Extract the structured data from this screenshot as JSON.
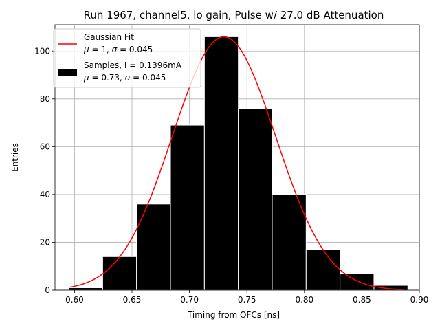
{
  "chart_data": {
    "type": "bar",
    "title": "Run 1967, channel5, lo gain, Pulse w/ 27.0 dB Attenuation",
    "xlabel": "Timing from OFCs [ns]",
    "ylabel": "Entries",
    "xlim": [
      0.583,
      0.9
    ],
    "ylim": [
      0,
      111
    ],
    "grid": true,
    "xticks": [
      0.6,
      0.65,
      0.7,
      0.75,
      0.8,
      0.85,
      0.9
    ],
    "xtick_labels": [
      "0.60",
      "0.65",
      "0.70",
      "0.75",
      "0.80",
      "0.85",
      "0.90"
    ],
    "yticks": [
      0,
      20,
      40,
      60,
      80,
      100
    ],
    "ytick_labels": [
      "0",
      "20",
      "40",
      "60",
      "80",
      "100"
    ],
    "bins": [
      {
        "left": 0.595,
        "right": 0.6245,
        "value": 1
      },
      {
        "left": 0.6245,
        "right": 0.654,
        "value": 14
      },
      {
        "left": 0.654,
        "right": 0.6835,
        "value": 36
      },
      {
        "left": 0.6835,
        "right": 0.713,
        "value": 69
      },
      {
        "left": 0.713,
        "right": 0.7425,
        "value": 106
      },
      {
        "left": 0.7425,
        "right": 0.772,
        "value": 76
      },
      {
        "left": 0.772,
        "right": 0.8015,
        "value": 40
      },
      {
        "left": 0.8015,
        "right": 0.831,
        "value": 17
      },
      {
        "left": 0.831,
        "right": 0.8605,
        "value": 7
      },
      {
        "left": 0.8605,
        "right": 0.89,
        "value": 2
      }
    ],
    "fit": {
      "type": "gaussian",
      "amplitude": 106,
      "mean": 0.73,
      "sigma": 0.045,
      "x_range": [
        0.596,
        0.886
      ],
      "color": "#ff0000"
    },
    "legend": {
      "position": "top-left",
      "entries": [
        {
          "name": "Gaussian Fit",
          "stats": {
            "mu_label": "μ",
            "mu_value": "= 1,",
            "sigma_label": "σ",
            "sigma_value": "= 0.045"
          }
        },
        {
          "name": "Samples, I = 0.1396mA",
          "stats": {
            "mu_label": "μ",
            "mu_value": "= 0.73,",
            "sigma_label": "σ",
            "sigma_value": "= 0.045"
          }
        }
      ]
    },
    "colors": {
      "bar": "#000000",
      "bar_edge": "#ffffff",
      "fit": "#ff0000",
      "grid": "#b0b0b0"
    }
  }
}
